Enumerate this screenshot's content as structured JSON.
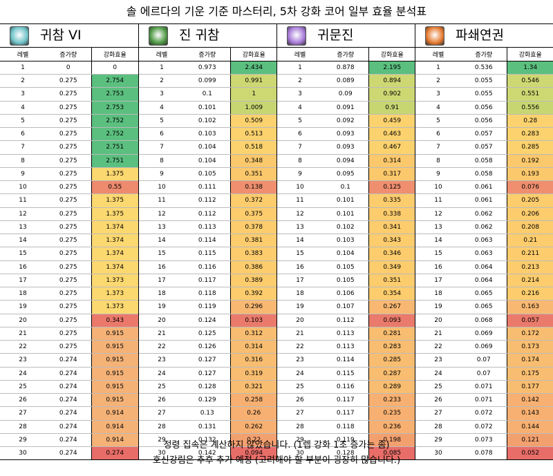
{
  "title": "솔 에르다의 기운 기준 마스터리, 5차 강화 코어 일부 효율 분석표",
  "headers": {
    "level": "레벨",
    "gain": "증가량",
    "efficiency": "강화효율"
  },
  "skills": [
    {
      "name": "귀참 VI",
      "icon": "gwicham-skill-icon",
      "icon_color": "#6fc3c8",
      "rows": [
        [
          "1",
          "0",
          "0"
        ],
        [
          "2",
          "0.275",
          "2.754"
        ],
        [
          "3",
          "0.275",
          "2.753"
        ],
        [
          "4",
          "0.275",
          "2.753"
        ],
        [
          "5",
          "0.275",
          "2.752"
        ],
        [
          "6",
          "0.275",
          "2.752"
        ],
        [
          "7",
          "0.275",
          "2.751"
        ],
        [
          "8",
          "0.275",
          "2.751"
        ],
        [
          "9",
          "0.275",
          "1.375"
        ],
        [
          "10",
          "0.275",
          "0.55"
        ],
        [
          "11",
          "0.275",
          "1.375"
        ],
        [
          "12",
          "0.275",
          "1.375"
        ],
        [
          "13",
          "0.275",
          "1.374"
        ],
        [
          "14",
          "0.275",
          "1.374"
        ],
        [
          "15",
          "0.275",
          "1.374"
        ],
        [
          "16",
          "0.275",
          "1.374"
        ],
        [
          "17",
          "0.275",
          "1.373"
        ],
        [
          "18",
          "0.275",
          "1.373"
        ],
        [
          "19",
          "0.275",
          "1.373"
        ],
        [
          "20",
          "0.275",
          "0.343"
        ],
        [
          "21",
          "0.275",
          "0.915"
        ],
        [
          "22",
          "0.275",
          "0.915"
        ],
        [
          "23",
          "0.274",
          "0.915"
        ],
        [
          "24",
          "0.274",
          "0.915"
        ],
        [
          "25",
          "0.274",
          "0.915"
        ],
        [
          "26",
          "0.274",
          "0.915"
        ],
        [
          "27",
          "0.274",
          "0.914"
        ],
        [
          "28",
          "0.274",
          "0.914"
        ],
        [
          "29",
          "0.274",
          "0.914"
        ],
        [
          "30",
          "0.274",
          "0.274"
        ]
      ],
      "colors": [
        "#ffffff",
        "#5bbf7f",
        "#5bbf7f",
        "#5bbf7f",
        "#5bbf7f",
        "#5bbf7f",
        "#5bbf7f",
        "#5bbf7f",
        "#fcd870",
        "#ee8a6e",
        "#fcd870",
        "#fcd870",
        "#fcd870",
        "#fcd870",
        "#fcd870",
        "#fcd870",
        "#fcd870",
        "#fcd870",
        "#fcd870",
        "#eb796b",
        "#f5b277",
        "#f5b277",
        "#f5b277",
        "#f5b277",
        "#f5b277",
        "#f5b277",
        "#f5b277",
        "#f5b277",
        "#f5b277",
        "#e86d68"
      ]
    },
    {
      "name": "진 귀참",
      "icon": "jin-gwicham-skill-icon",
      "icon_color": "#4f9a45",
      "rows": [
        [
          "1",
          "0.973",
          "2.434"
        ],
        [
          "2",
          "0.099",
          "0.991"
        ],
        [
          "3",
          "0.1",
          "1"
        ],
        [
          "4",
          "0.101",
          "1.009"
        ],
        [
          "5",
          "0.102",
          "0.509"
        ],
        [
          "6",
          "0.103",
          "0.513"
        ],
        [
          "7",
          "0.104",
          "0.518"
        ],
        [
          "8",
          "0.104",
          "0.348"
        ],
        [
          "9",
          "0.105",
          "0.351"
        ],
        [
          "10",
          "0.111",
          "0.138"
        ],
        [
          "11",
          "0.112",
          "0.372"
        ],
        [
          "12",
          "0.112",
          "0.375"
        ],
        [
          "13",
          "0.113",
          "0.378"
        ],
        [
          "14",
          "0.114",
          "0.381"
        ],
        [
          "15",
          "0.115",
          "0.383"
        ],
        [
          "16",
          "0.116",
          "0.386"
        ],
        [
          "17",
          "0.117",
          "0.389"
        ],
        [
          "18",
          "0.118",
          "0.392"
        ],
        [
          "19",
          "0.119",
          "0.296"
        ],
        [
          "20",
          "0.124",
          "0.103"
        ],
        [
          "21",
          "0.125",
          "0.312"
        ],
        [
          "22",
          "0.126",
          "0.314"
        ],
        [
          "23",
          "0.127",
          "0.316"
        ],
        [
          "24",
          "0.127",
          "0.319"
        ],
        [
          "25",
          "0.128",
          "0.321"
        ],
        [
          "26",
          "0.129",
          "0.258"
        ],
        [
          "27",
          "0.13",
          "0.26"
        ],
        [
          "28",
          "0.131",
          "0.262"
        ],
        [
          "29",
          "0.132",
          "0.22"
        ],
        [
          "30",
          "0.142",
          "0.094"
        ]
      ],
      "colors": [
        "#5bbf7f",
        "#cdd873",
        "#cdd873",
        "#c8d672",
        "#fbd26e",
        "#fbd26e",
        "#fbd26e",
        "#fcc86c",
        "#fcc86c",
        "#ef8f6f",
        "#fccc6d",
        "#fccc6d",
        "#fccc6d",
        "#fccc6d",
        "#fccc6d",
        "#fccc6d",
        "#fccc6d",
        "#fccc6d",
        "#f8b872",
        "#ea7a6b",
        "#f8bd70",
        "#f8bd70",
        "#f8bd70",
        "#f8bd70",
        "#f8bd70",
        "#f7b071",
        "#f7b071",
        "#f7b071",
        "#f3a06f",
        "#e86d68"
      ]
    },
    {
      "name": "귀문진",
      "icon": "gwimunjin-skill-icon",
      "icon_color": "#a77ad8",
      "rows": [
        [
          "1",
          "0.878",
          "2.195"
        ],
        [
          "2",
          "0.089",
          "0.894"
        ],
        [
          "3",
          "0.09",
          "0.902"
        ],
        [
          "4",
          "0.091",
          "0.91"
        ],
        [
          "5",
          "0.092",
          "0.459"
        ],
        [
          "6",
          "0.093",
          "0.463"
        ],
        [
          "7",
          "0.093",
          "0.467"
        ],
        [
          "8",
          "0.094",
          "0.314"
        ],
        [
          "9",
          "0.095",
          "0.317"
        ],
        [
          "10",
          "0.1",
          "0.125"
        ],
        [
          "11",
          "0.101",
          "0.335"
        ],
        [
          "12",
          "0.101",
          "0.338"
        ],
        [
          "13",
          "0.102",
          "0.341"
        ],
        [
          "14",
          "0.103",
          "0.343"
        ],
        [
          "15",
          "0.104",
          "0.346"
        ],
        [
          "16",
          "0.105",
          "0.349"
        ],
        [
          "17",
          "0.105",
          "0.351"
        ],
        [
          "18",
          "0.106",
          "0.354"
        ],
        [
          "19",
          "0.107",
          "0.267"
        ],
        [
          "20",
          "0.112",
          "0.093"
        ],
        [
          "21",
          "0.113",
          "0.281"
        ],
        [
          "22",
          "0.113",
          "0.283"
        ],
        [
          "23",
          "0.114",
          "0.285"
        ],
        [
          "24",
          "0.115",
          "0.287"
        ],
        [
          "25",
          "0.116",
          "0.289"
        ],
        [
          "26",
          "0.117",
          "0.233"
        ],
        [
          "27",
          "0.117",
          "0.235"
        ],
        [
          "28",
          "0.118",
          "0.236"
        ],
        [
          "29",
          "0.119",
          "0.198"
        ],
        [
          "30",
          "0.128",
          "0.085"
        ]
      ],
      "colors": [
        "#5bbf7f",
        "#cdd873",
        "#cdd873",
        "#c8d672",
        "#fbd26e",
        "#fbd26e",
        "#fbd26e",
        "#fcc86c",
        "#fcc86c",
        "#ef8f6f",
        "#fccc6d",
        "#fccc6d",
        "#fccc6d",
        "#fccc6d",
        "#fccc6d",
        "#fccc6d",
        "#fccc6d",
        "#fccc6d",
        "#f8b872",
        "#ea7a6b",
        "#f8bd70",
        "#f8bd70",
        "#f8bd70",
        "#f8bd70",
        "#f8bd70",
        "#f7b071",
        "#f7b071",
        "#f7b071",
        "#f3a06f",
        "#e86d68"
      ]
    },
    {
      "name": "파쇄연권",
      "icon": "paswaeyeongwon-skill-icon",
      "icon_color": "#e67a30",
      "rows": [
        [
          "1",
          "0.536",
          "1.34"
        ],
        [
          "2",
          "0.055",
          "0.546"
        ],
        [
          "3",
          "0.055",
          "0.551"
        ],
        [
          "4",
          "0.056",
          "0.556"
        ],
        [
          "5",
          "0.056",
          "0.28"
        ],
        [
          "6",
          "0.057",
          "0.283"
        ],
        [
          "7",
          "0.057",
          "0.285"
        ],
        [
          "8",
          "0.058",
          "0.192"
        ],
        [
          "9",
          "0.058",
          "0.193"
        ],
        [
          "10",
          "0.061",
          "0.076"
        ],
        [
          "11",
          "0.061",
          "0.205"
        ],
        [
          "12",
          "0.062",
          "0.206"
        ],
        [
          "13",
          "0.062",
          "0.208"
        ],
        [
          "14",
          "0.063",
          "0.21"
        ],
        [
          "15",
          "0.063",
          "0.211"
        ],
        [
          "16",
          "0.064",
          "0.213"
        ],
        [
          "17",
          "0.064",
          "0.214"
        ],
        [
          "18",
          "0.065",
          "0.216"
        ],
        [
          "19",
          "0.065",
          "0.163"
        ],
        [
          "20",
          "0.068",
          "0.057"
        ],
        [
          "21",
          "0.069",
          "0.172"
        ],
        [
          "22",
          "0.069",
          "0.173"
        ],
        [
          "23",
          "0.07",
          "0.174"
        ],
        [
          "24",
          "0.07",
          "0.175"
        ],
        [
          "25",
          "0.071",
          "0.177"
        ],
        [
          "26",
          "0.071",
          "0.142"
        ],
        [
          "27",
          "0.072",
          "0.143"
        ],
        [
          "28",
          "0.072",
          "0.144"
        ],
        [
          "29",
          "0.073",
          "0.121"
        ],
        [
          "30",
          "0.078",
          "0.052"
        ]
      ],
      "colors": [
        "#5bbf7f",
        "#cdd873",
        "#cdd873",
        "#c8d672",
        "#fbd26e",
        "#fbd26e",
        "#fbd26e",
        "#fcc86c",
        "#fcc86c",
        "#ef8f6f",
        "#fccc6d",
        "#fccc6d",
        "#fccc6d",
        "#fccc6d",
        "#fccc6d",
        "#fccc6d",
        "#fccc6d",
        "#fccc6d",
        "#f8b872",
        "#ea7a6b",
        "#f8bd70",
        "#f8bd70",
        "#f8bd70",
        "#f8bd70",
        "#f8bd70",
        "#f7b071",
        "#f7b071",
        "#f7b071",
        "#f3a06f",
        "#e86d68"
      ]
    }
  ],
  "footer": {
    "line1": "정령 집속은 계산하지 않았습니다. (1렙 강화 1초 증가는 좀)",
    "line2": "호신강림은 추후 추가 예정 (고려해야 할 부분이 굉장히 많습니다.)"
  }
}
